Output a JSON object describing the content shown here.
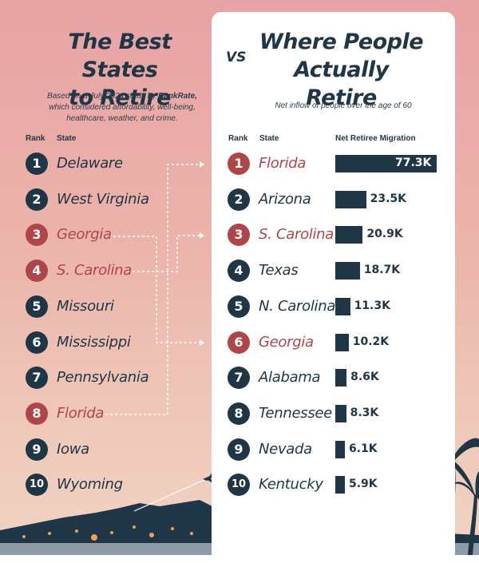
{
  "header": {
    "left_title_line1": "The Best States",
    "left_title_line2": "to Retire",
    "vs": "VS",
    "right_title_line1": "Where People",
    "right_title_line2": "Actually Retire",
    "note_line1_prefix": "Based on a July 2024 study by ",
    "note_source": "BankRate,",
    "note_line2": "which considered affordability, well-being,",
    "note_line3": "healthcare, weather, and crime.",
    "right_note": "Net inflow of people over the age of 60"
  },
  "columns": {
    "rank": "Rank",
    "state": "State",
    "migration": "Net Retiree Migration"
  },
  "colors": {
    "navy": "#1f3646",
    "highlight": "#b04548",
    "card": "#ffffff"
  },
  "best_states": [
    {
      "rank": "1",
      "state": "Delaware",
      "highlight": false
    },
    {
      "rank": "2",
      "state": "West Virginia",
      "highlight": false
    },
    {
      "rank": "3",
      "state": "Georgia",
      "highlight": true
    },
    {
      "rank": "4",
      "state": "S. Carolina",
      "highlight": true
    },
    {
      "rank": "5",
      "state": "Missouri",
      "highlight": false
    },
    {
      "rank": "6",
      "state": "Mississippi",
      "highlight": false
    },
    {
      "rank": "7",
      "state": "Pennsylvania",
      "highlight": false
    },
    {
      "rank": "8",
      "state": "Florida",
      "highlight": true
    },
    {
      "rank": "9",
      "state": "Iowa",
      "highlight": false
    },
    {
      "rank": "10",
      "state": "Wyoming",
      "highlight": false
    }
  ],
  "chart_data": {
    "type": "bar",
    "orientation": "horizontal",
    "categories": [
      "Florida",
      "Arizona",
      "S. Carolina",
      "Texas",
      "N. Carolina",
      "Georgia",
      "Alabama",
      "Tennessee",
      "Nevada",
      "Kentucky"
    ],
    "ranks": [
      "1",
      "2",
      "3",
      "4",
      "5",
      "6",
      "7",
      "8",
      "9",
      "10"
    ],
    "values": [
      77.3,
      23.5,
      20.9,
      18.7,
      11.3,
      10.2,
      8.6,
      8.3,
      6.1,
      5.9
    ],
    "value_labels": [
      "77.3K",
      "23.5K",
      "20.9K",
      "18.7K",
      "11.3K",
      "10.2K",
      "8.6K",
      "8.3K",
      "6.1K",
      "5.9K"
    ],
    "highlighted": [
      "Florida",
      "S. Carolina",
      "Georgia"
    ],
    "units": "thousands of people",
    "connections": [
      {
        "from": "Florida",
        "to": "Florida"
      },
      {
        "from": "Georgia",
        "to": "Georgia"
      },
      {
        "from": "S. Carolina",
        "to": "S. Carolina"
      }
    ]
  }
}
